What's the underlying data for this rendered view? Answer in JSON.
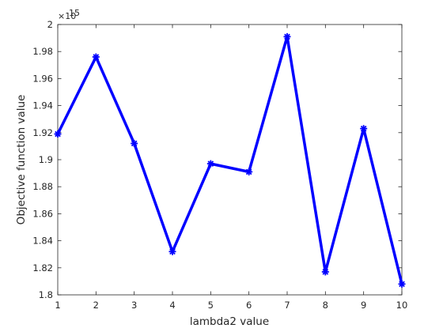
{
  "chart_data": {
    "type": "line",
    "title": "",
    "xlabel": "lambda2 value",
    "ylabel": "Objective function value",
    "y_exponent_label": "×10",
    "y_exponent_power": "15",
    "x": [
      1,
      2,
      3,
      4,
      5,
      6,
      7,
      8,
      9,
      10
    ],
    "series": [
      {
        "values": [
          1.919,
          1.976,
          1.912,
          1.832,
          1.897,
          1.891,
          1.991,
          1.817,
          1.923,
          1.808
        ],
        "color": "#0000ff",
        "marker": "asterisk"
      }
    ],
    "xlim": [
      1,
      10
    ],
    "ylim": [
      1.8,
      2.0
    ],
    "x_ticks": [
      "1",
      "2",
      "3",
      "4",
      "5",
      "6",
      "7",
      "8",
      "9",
      "10"
    ],
    "y_ticks": [
      "1.8",
      "1.82",
      "1.84",
      "1.86",
      "1.88",
      "1.9",
      "1.92",
      "1.94",
      "1.96",
      "1.98",
      "2"
    ],
    "grid": false,
    "box": true
  }
}
